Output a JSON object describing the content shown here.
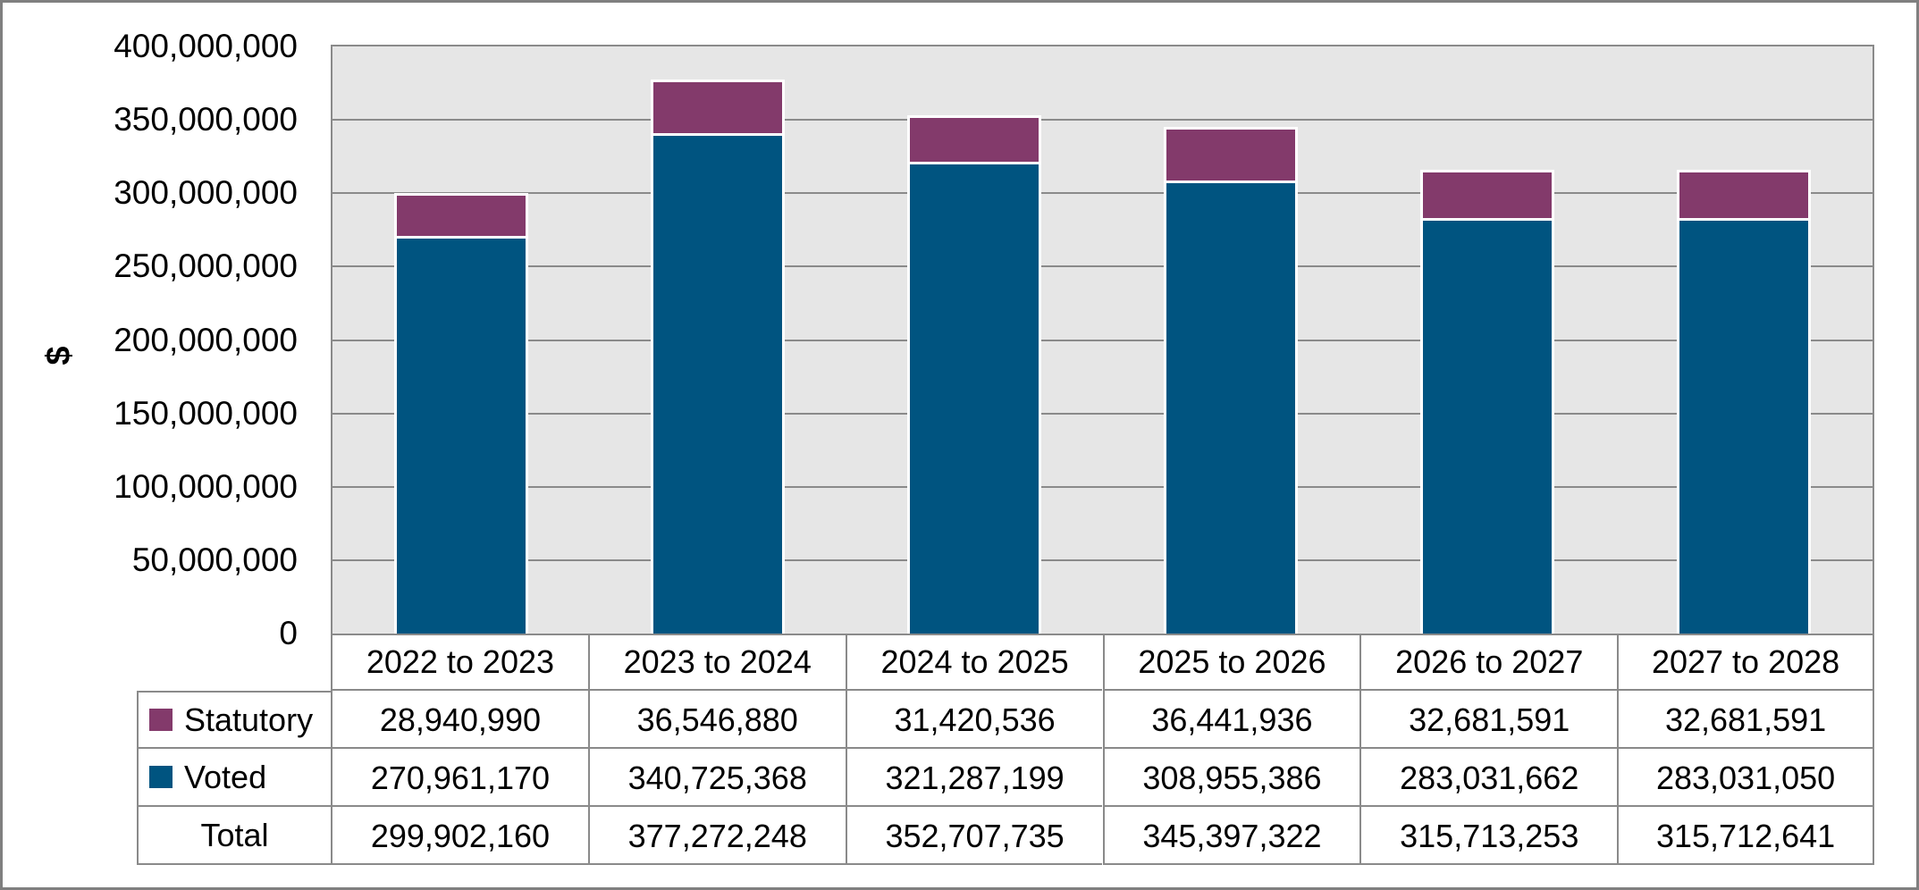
{
  "chart_data": {
    "type": "bar",
    "stacked": true,
    "title": "",
    "xlabel": "",
    "ylabel": "$",
    "ylim": [
      0,
      400000000
    ],
    "y_ticks": [
      0,
      50000000,
      100000000,
      150000000,
      200000000,
      250000000,
      300000000,
      350000000,
      400000000
    ],
    "grid": "horizontal",
    "legend_position": "data-table-left",
    "plot_background": "#e6e6e6",
    "categories": [
      "2022 to 2023",
      "2023 to 2024",
      "2024 to 2025",
      "2025 to 2026",
      "2026 to 2027",
      "2027 to 2028"
    ],
    "series": [
      {
        "name": "Statutory",
        "color": "#833a6b",
        "values": [
          28940990,
          36546880,
          31420536,
          36441936,
          32681591,
          32681591
        ]
      },
      {
        "name": "Voted",
        "color": "#005480",
        "values": [
          270961170,
          340725368,
          321287199,
          308955386,
          283031662,
          283031050
        ]
      }
    ],
    "total_row": {
      "label": "Total",
      "values": [
        299902160,
        377272248,
        352707735,
        345397322,
        315713253,
        315712641
      ]
    }
  }
}
